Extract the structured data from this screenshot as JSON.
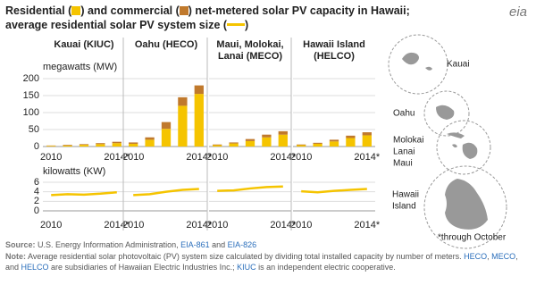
{
  "title_lines": [
    [
      {
        "text": "Residential ("
      },
      {
        "swatch": "#f5c400"
      },
      {
        "text": ") and commercial ("
      },
      {
        "swatch": "#c0792c"
      },
      {
        "text": ") net-metered solar PV capacity in Hawaii;"
      }
    ],
    [
      {
        "text": "average residential solar PV system  size ("
      },
      {
        "line": "#f5c400"
      },
      {
        "text": ")"
      }
    ]
  ],
  "logo": "eia",
  "chart_data": [
    {
      "type": "bar",
      "title": "Kauai (KIUC)",
      "y_label": "megawatts (MW)",
      "categories": [
        "2010",
        null,
        null,
        null,
        "2014*"
      ],
      "ylim": [
        0,
        200
      ],
      "yticks": [
        0,
        50,
        100,
        150,
        200
      ],
      "grid": true,
      "series": [
        {
          "color": "#f5c400",
          "values": [
            2,
            3,
            5,
            7,
            10
          ]
        },
        {
          "color": "#c0792c",
          "values": [
            1,
            2,
            2,
            3,
            4
          ]
        }
      ]
    },
    {
      "type": "bar",
      "title": "Oahu (HECO)",
      "categories": [
        "2010",
        null,
        null,
        null,
        "2014*"
      ],
      "grid": true,
      "series": [
        {
          "color": "#f5c400",
          "values": [
            8,
            20,
            52,
            120,
            155
          ]
        },
        {
          "color": "#c0792c",
          "values": [
            4,
            7,
            20,
            25,
            25
          ]
        }
      ]
    },
    {
      "type": "bar",
      "title": "Maui, Molokai, Lanai (MECO)",
      "categories": [
        "2010",
        null,
        null,
        null,
        "2014*"
      ],
      "grid": true,
      "series": [
        {
          "color": "#f5c400",
          "values": [
            4,
            9,
            16,
            27,
            35
          ]
        },
        {
          "color": "#c0792c",
          "values": [
            2,
            3,
            6,
            8,
            10
          ]
        }
      ]
    },
    {
      "type": "bar",
      "title": "Hawaii Island (HELCO)",
      "categories": [
        "2010",
        null,
        null,
        null,
        "2014*"
      ],
      "grid": true,
      "series": [
        {
          "color": "#f5c400",
          "values": [
            4,
            8,
            15,
            25,
            33
          ]
        },
        {
          "color": "#c0792c",
          "values": [
            2,
            3,
            5,
            7,
            9
          ]
        }
      ]
    },
    {
      "type": "line",
      "y_label": "kilowatts (KW)",
      "categories": [
        "2010",
        null,
        null,
        null,
        "2014*"
      ],
      "ylim": [
        0,
        6
      ],
      "yticks": [
        0,
        2,
        4,
        6
      ],
      "grid": true,
      "color": "#f5c400",
      "values": [
        3.3,
        3.5,
        3.4,
        3.6,
        3.9
      ]
    },
    {
      "type": "line",
      "categories": [
        "2010",
        null,
        null,
        null,
        "2014*"
      ],
      "grid": true,
      "color": "#f5c400",
      "values": [
        3.3,
        3.5,
        4.0,
        4.4,
        4.6
      ]
    },
    {
      "type": "line",
      "categories": [
        "2010",
        null,
        null,
        null,
        "2014*"
      ],
      "grid": true,
      "color": "#f5c400",
      "values": [
        4.2,
        4.3,
        4.7,
        5.0,
        5.1
      ]
    },
    {
      "type": "line",
      "categories": [
        "2010",
        null,
        null,
        null,
        "2014*"
      ],
      "grid": true,
      "color": "#f5c400",
      "values": [
        4.1,
        3.9,
        4.2,
        4.4,
        4.6
      ]
    }
  ],
  "map": {
    "labels": [
      [
        "Kauai"
      ],
      [
        "Oahu"
      ],
      [
        "Molokai",
        "Lanai",
        "Maui"
      ],
      [
        "Hawaii",
        "Island"
      ]
    ],
    "footnote": "*through October"
  },
  "footer": {
    "source": {
      "label": "Source:",
      "segments": [
        {
          "text": " U.S. Energy Information Administration, "
        },
        {
          "link": "EIA-861"
        },
        {
          "text": " and "
        },
        {
          "link": "EIA-826"
        }
      ]
    },
    "note": {
      "label": "Note:",
      "segments": [
        {
          "text": " Average residential solar photovoltaic (PV) system size calculated by dividing total installed capacity by number of meters. "
        },
        {
          "link": "HECO"
        },
        {
          "text": ", "
        },
        {
          "link": "MECO"
        },
        {
          "text": ", and "
        },
        {
          "link": "HELCO"
        },
        {
          "text": " are subsidiaries of Hawaiian Electric Industries Inc.; "
        },
        {
          "link": "KIUC"
        },
        {
          "text": " is an independent electric cooperative."
        }
      ]
    }
  }
}
